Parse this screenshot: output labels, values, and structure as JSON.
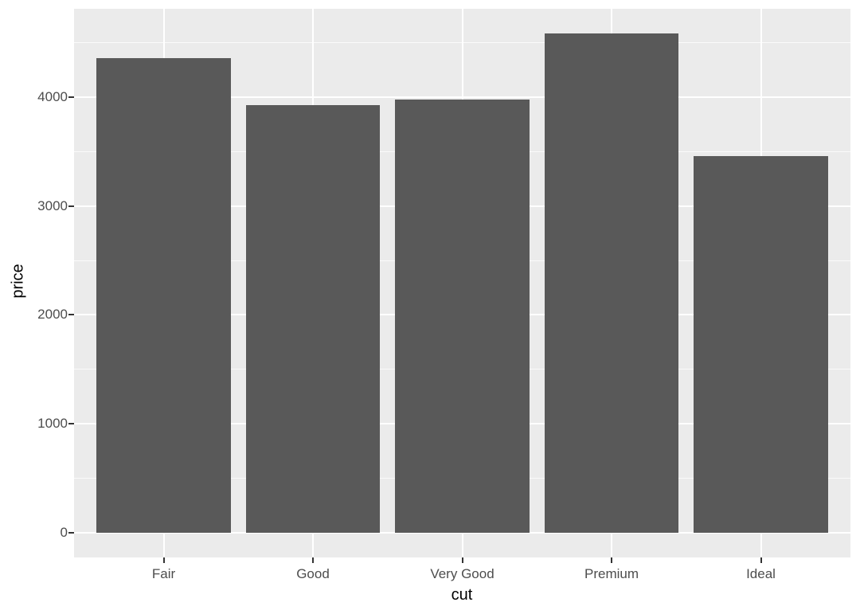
{
  "chart_data": {
    "type": "bar",
    "xlabel": "cut",
    "ylabel": "price",
    "categories": [
      "Fair",
      "Good",
      "Very Good",
      "Premium",
      "Ideal"
    ],
    "values": [
      4358.76,
      3928.86,
      3981.76,
      4584.26,
      3457.54
    ],
    "yticks": [
      0,
      1000,
      2000,
      3000,
      4000
    ],
    "ytick_labels": [
      "0",
      "1000",
      "2000",
      "3000",
      "4000"
    ],
    "yminor": [
      500,
      1500,
      2500,
      3500,
      4500
    ],
    "ylim": [
      -229.2,
      4813.5
    ],
    "bar_width_fraction": 0.9,
    "outer_expand_fraction": 0.6,
    "grid": "major-and-minor",
    "legend": "none",
    "colors": {
      "bar": "#595959",
      "panel_bg": "#EBEBEB",
      "grid_major": "#FFFFFF",
      "grid_minor": "rgba(255,255,255,0.75)",
      "tick_label": "#4D4D4D",
      "tick_mark": "#333333",
      "axis_title": "#000000",
      "figure_bg": "#FFFFFF"
    }
  }
}
